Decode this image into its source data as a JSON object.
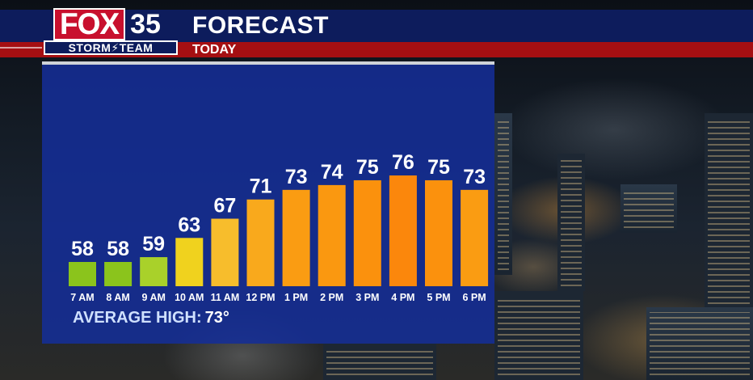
{
  "header": {
    "brand": "FOX",
    "channel": "35",
    "team": "STORM⚡TEAM",
    "title": "FORECAST",
    "subtitle": "TODAY"
  },
  "footer": {
    "avg_label": "AVERAGE HIGH:",
    "avg_value": "73°"
  },
  "colors": {
    "header_blue": "#0d1c5c",
    "header_red": "#a50f12",
    "panel": "#142e96"
  },
  "chart_data": {
    "type": "bar",
    "categories": [
      "7 AM",
      "8 AM",
      "9 AM",
      "10 AM",
      "11 AM",
      "12 PM",
      "1 PM",
      "2 PM",
      "3 PM",
      "4 PM",
      "5 PM",
      "6 PM"
    ],
    "values": [
      58,
      58,
      59,
      63,
      67,
      71,
      73,
      74,
      75,
      76,
      75,
      73
    ],
    "bar_colors": [
      "#8bc41c",
      "#8bc41c",
      "#a9d12a",
      "#f0d21e",
      "#f7bd2c",
      "#f9a91c",
      "#fa9c12",
      "#fa9810",
      "#fb910d",
      "#fb870c",
      "#fb910d",
      "#fa9c12"
    ],
    "title": "",
    "xlabel": "",
    "ylabel": "",
    "data_labels": true,
    "grid": false
  }
}
